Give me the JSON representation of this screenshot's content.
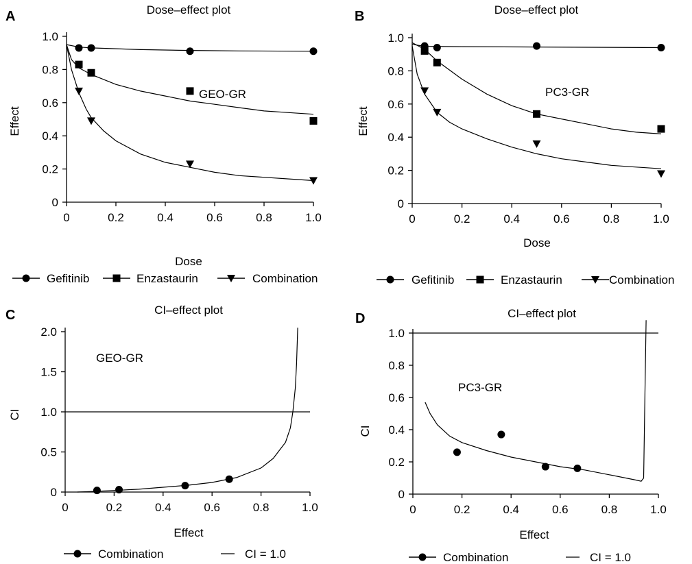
{
  "chart_data": [
    {
      "panel": "A",
      "type": "scatter",
      "title": "Dose–effect plot",
      "xlabel": "Dose",
      "ylabel": "Effect",
      "xlim": [
        0,
        1.0
      ],
      "ylim": [
        0,
        1.0
      ],
      "xticks": [
        "0",
        "0.2",
        "0.4",
        "0.6",
        "0.8",
        "1.0"
      ],
      "yticks": [
        "0",
        "0.2",
        "0.4",
        "0.6",
        "0.8",
        "1.0"
      ],
      "annotation": {
        "text": "GEO-GR",
        "x": 0.58,
        "y": 0.78
      },
      "series": [
        {
          "name": "Gefitinib",
          "marker": "circle",
          "x": [
            0.05,
            0.1,
            0.5,
            1.0
          ],
          "y": [
            0.93,
            0.93,
            0.91,
            0.91
          ],
          "fit": {
            "x": [
              0.0,
              0.05,
              0.1,
              0.2,
              0.3,
              0.5,
              0.7,
              1.0
            ],
            "y": [
              0.95,
              0.935,
              0.93,
              0.925,
              0.92,
              0.915,
              0.912,
              0.91
            ]
          }
        },
        {
          "name": "Enzastaurin",
          "marker": "square",
          "x": [
            0.05,
            0.1,
            0.5,
            1.0
          ],
          "y": [
            0.83,
            0.78,
            0.67,
            0.49
          ],
          "fit": {
            "x": [
              0.0,
              0.02,
              0.05,
              0.1,
              0.2,
              0.3,
              0.4,
              0.5,
              0.6,
              0.7,
              0.8,
              0.9,
              1.0
            ],
            "y": [
              0.95,
              0.86,
              0.81,
              0.77,
              0.71,
              0.67,
              0.64,
              0.61,
              0.59,
              0.57,
              0.55,
              0.54,
              0.53
            ]
          }
        },
        {
          "name": "Combination",
          "marker": "triangle-down",
          "x": [
            0.05,
            0.1,
            0.5,
            1.0
          ],
          "y": [
            0.67,
            0.49,
            0.23,
            0.13
          ],
          "fit": {
            "x": [
              0.0,
              0.02,
              0.05,
              0.08,
              0.1,
              0.15,
              0.2,
              0.3,
              0.4,
              0.5,
              0.6,
              0.7,
              0.8,
              0.9,
              1.0
            ],
            "y": [
              0.95,
              0.8,
              0.66,
              0.56,
              0.51,
              0.43,
              0.37,
              0.29,
              0.24,
              0.21,
              0.18,
              0.16,
              0.15,
              0.14,
              0.13
            ]
          }
        }
      ],
      "legend": [
        {
          "label": "Gefitinib",
          "marker": "circle"
        },
        {
          "label": "Enzastaurin",
          "marker": "square"
        },
        {
          "label": "Combination",
          "marker": "triangle-down"
        }
      ]
    },
    {
      "panel": "B",
      "type": "scatter",
      "title": "Dose–effect plot",
      "xlabel": "Dose",
      "ylabel": "Effect",
      "xlim": [
        0,
        1.0
      ],
      "ylim": [
        0,
        1.0
      ],
      "xticks": [
        "0",
        "0.2",
        "0.4",
        "0.6",
        "0.8",
        "1.0"
      ],
      "yticks": [
        "0",
        "0.2",
        "0.4",
        "0.6",
        "0.8",
        "1.0"
      ],
      "annotation": {
        "text": "PC3-GR",
        "x": 0.58,
        "y": 0.79
      },
      "series": [
        {
          "name": "Gefitinib",
          "marker": "circle",
          "x": [
            0.05,
            0.1,
            0.5,
            1.0
          ],
          "y": [
            0.95,
            0.94,
            0.95,
            0.94
          ],
          "fit": {
            "x": [
              0.0,
              0.05,
              0.2,
              0.5,
              1.0
            ],
            "y": [
              0.96,
              0.948,
              0.946,
              0.944,
              0.94
            ]
          }
        },
        {
          "name": "Enzastaurin",
          "marker": "square",
          "x": [
            0.05,
            0.1,
            0.5,
            1.0
          ],
          "y": [
            0.92,
            0.85,
            0.54,
            0.45
          ],
          "fit": {
            "x": [
              0.0,
              0.05,
              0.1,
              0.2,
              0.3,
              0.4,
              0.5,
              0.6,
              0.7,
              0.8,
              0.9,
              1.0
            ],
            "y": [
              0.97,
              0.93,
              0.86,
              0.75,
              0.66,
              0.59,
              0.54,
              0.51,
              0.48,
              0.45,
              0.43,
              0.42
            ]
          }
        },
        {
          "name": "Combination",
          "marker": "triangle-down",
          "x": [
            0.05,
            0.1,
            0.5,
            1.0
          ],
          "y": [
            0.68,
            0.55,
            0.36,
            0.18
          ],
          "fit": {
            "x": [
              0.0,
              0.02,
              0.05,
              0.1,
              0.15,
              0.2,
              0.3,
              0.4,
              0.5,
              0.6,
              0.7,
              0.8,
              0.9,
              1.0
            ],
            "y": [
              0.95,
              0.78,
              0.66,
              0.55,
              0.49,
              0.45,
              0.39,
              0.34,
              0.3,
              0.27,
              0.25,
              0.23,
              0.22,
              0.21
            ]
          }
        }
      ],
      "legend": [
        {
          "label": "Gefitinib",
          "marker": "circle"
        },
        {
          "label": "Enzastaurin",
          "marker": "square"
        },
        {
          "label": "Combination",
          "marker": "triangle-down"
        }
      ]
    },
    {
      "panel": "C",
      "type": "scatter",
      "title": "CI–effect plot",
      "xlabel": "Effect",
      "ylabel": "CI",
      "xlim": [
        0,
        1.0
      ],
      "ylim": [
        0,
        2.0
      ],
      "xticks": [
        "0",
        "0.2",
        "0.4",
        "0.6",
        "0.8",
        "1.0"
      ],
      "yticks": [
        "0",
        "0.5",
        "1.0",
        "1.5",
        "2.0"
      ],
      "annotation": {
        "text": "GEO-GR",
        "x": 0.13,
        "y": 1.6
      },
      "series": [
        {
          "name": "Combination",
          "marker": "circle",
          "x": [
            0.13,
            0.22,
            0.49,
            0.67
          ],
          "y": [
            0.02,
            0.03,
            0.08,
            0.16
          ]
        },
        {
          "name": "CI curve",
          "marker": "none",
          "line": {
            "x": [
              0.05,
              0.1,
              0.2,
              0.3,
              0.4,
              0.5,
              0.6,
              0.7,
              0.8,
              0.85,
              0.9,
              0.92,
              0.93,
              0.94,
              0.945,
              0.95
            ],
            "y": [
              0.0,
              0.005,
              0.02,
              0.035,
              0.06,
              0.085,
              0.12,
              0.18,
              0.3,
              0.42,
              0.62,
              0.8,
              1.0,
              1.3,
              1.6,
              2.05
            ]
          }
        },
        {
          "name": "CI = 1.0",
          "marker": "none",
          "line": {
            "x": [
              0.0,
              1.0
            ],
            "y": [
              1.0,
              1.0
            ]
          }
        }
      ],
      "legend": [
        {
          "label": "Combination",
          "marker": "circle"
        },
        {
          "label": "CI = 1.0",
          "marker": "line"
        }
      ]
    },
    {
      "panel": "D",
      "type": "scatter",
      "title": "CI–effect plot",
      "xlabel": "Effect",
      "ylabel": "CI",
      "xlim": [
        0,
        1.0
      ],
      "ylim": [
        0,
        1.0
      ],
      "xticks": [
        "0",
        "0.2",
        "0.4",
        "0.6",
        "0.8",
        "1.0"
      ],
      "yticks": [
        "0",
        "0.2",
        "0.4",
        "0.6",
        "0.8",
        "1.0"
      ],
      "annotation": {
        "text": "PC3-GR",
        "x": 0.19,
        "y": 0.73
      },
      "series": [
        {
          "name": "Combination",
          "marker": "circle",
          "x": [
            0.18,
            0.36,
            0.54,
            0.67
          ],
          "y": [
            0.26,
            0.37,
            0.17,
            0.16
          ]
        },
        {
          "name": "CI curve",
          "marker": "none",
          "line": {
            "x": [
              0.05,
              0.07,
              0.1,
              0.15,
              0.2,
              0.3,
              0.4,
              0.5,
              0.6,
              0.7,
              0.8,
              0.9,
              0.93,
              0.94,
              0.945,
              0.95
            ],
            "y": [
              0.57,
              0.5,
              0.43,
              0.36,
              0.32,
              0.27,
              0.23,
              0.2,
              0.17,
              0.15,
              0.12,
              0.09,
              0.08,
              0.1,
              0.6,
              1.08
            ]
          }
        },
        {
          "name": "CI = 1.0",
          "marker": "none",
          "line": {
            "x": [
              0.0,
              1.0
            ],
            "y": [
              1.0,
              1.0
            ]
          }
        }
      ],
      "legend": [
        {
          "label": "Combination",
          "marker": "circle"
        },
        {
          "label": "CI = 1.0",
          "marker": "line"
        }
      ]
    }
  ]
}
